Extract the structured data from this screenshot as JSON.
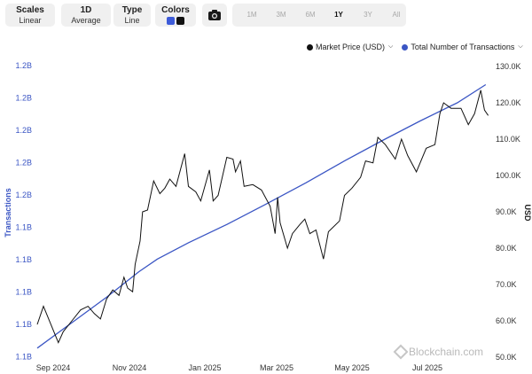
{
  "toolbar": {
    "scales": {
      "label": "Scales",
      "value": "Linear"
    },
    "interval": {
      "label": "1D",
      "value": "Average"
    },
    "type": {
      "label": "Type",
      "value": "Line"
    },
    "colors": {
      "label": "Colors",
      "swatch1": "#3d5bd9",
      "swatch2": "#111111"
    },
    "camera_icon": "camera-icon",
    "ranges": [
      "1M",
      "3M",
      "6M",
      "1Y",
      "3Y",
      "All"
    ],
    "active_range": "1Y"
  },
  "legend": {
    "market_price": "Market Price (USD)",
    "transactions": "Total Number of Transactions",
    "market_color": "#111111",
    "transactions_color": "#3b56c4"
  },
  "watermark": "Blockchain.com",
  "chart_data": {
    "type": "line",
    "x_ticks": [
      "Sep 2024",
      "Nov 2024",
      "Jan 2025",
      "Mar 2025",
      "May 2025",
      "Jul 2025"
    ],
    "left_axis": {
      "title": "Transactions",
      "tick_labels": [
        "1.2B",
        "1.2B",
        "1.2B",
        "1.2B",
        "1.2B",
        "1.1B",
        "1.1B",
        "1.1B",
        "1.1B",
        "1.1B"
      ]
    },
    "right_axis": {
      "title": "USD",
      "tick_labels": [
        "130.0K",
        "120.0K",
        "110.0K",
        "100.0K",
        "90.0K",
        "80.0K",
        "70.0K",
        "60.0K",
        "50.0K"
      ],
      "ylim": [
        50000,
        130000
      ]
    },
    "series": [
      {
        "name": "Market Price (USD)",
        "axis": "right",
        "color": "#111111",
        "points": [
          [
            "2024-08-20",
            59000
          ],
          [
            "2024-08-25",
            64000
          ],
          [
            "2024-08-31",
            59000
          ],
          [
            "2024-09-06",
            54000
          ],
          [
            "2024-09-10",
            57000
          ],
          [
            "2024-09-17",
            60000
          ],
          [
            "2024-09-24",
            63000
          ],
          [
            "2024-09-30",
            64000
          ],
          [
            "2024-10-05",
            62000
          ],
          [
            "2024-10-10",
            60500
          ],
          [
            "2024-10-15",
            66000
          ],
          [
            "2024-10-20",
            68500
          ],
          [
            "2024-10-25",
            67000
          ],
          [
            "2024-10-29",
            72000
          ],
          [
            "2024-11-01",
            69000
          ],
          [
            "2024-11-05",
            68000
          ],
          [
            "2024-11-07",
            75500
          ],
          [
            "2024-11-11",
            82000
          ],
          [
            "2024-11-13",
            90000
          ],
          [
            "2024-11-17",
            90500
          ],
          [
            "2024-11-22",
            98500
          ],
          [
            "2024-11-27",
            95000
          ],
          [
            "2024-12-01",
            96500
          ],
          [
            "2024-12-05",
            99000
          ],
          [
            "2024-12-10",
            97000
          ],
          [
            "2024-12-17",
            106000
          ],
          [
            "2024-12-20",
            97000
          ],
          [
            "2024-12-26",
            95500
          ],
          [
            "2024-12-30",
            93000
          ],
          [
            "2025-01-06",
            101500
          ],
          [
            "2025-01-09",
            93000
          ],
          [
            "2025-01-13",
            94500
          ],
          [
            "2025-01-20",
            105000
          ],
          [
            "2025-01-25",
            104500
          ],
          [
            "2025-01-27",
            101000
          ],
          [
            "2025-01-31",
            104000
          ],
          [
            "2025-02-03",
            97000
          ],
          [
            "2025-02-10",
            97500
          ],
          [
            "2025-02-17",
            96000
          ],
          [
            "2025-02-24",
            91500
          ],
          [
            "2025-02-28",
            84000
          ],
          [
            "2025-03-02",
            94000
          ],
          [
            "2025-03-04",
            87000
          ],
          [
            "2025-03-10",
            80000
          ],
          [
            "2025-03-14",
            84000
          ],
          [
            "2025-03-20",
            86500
          ],
          [
            "2025-03-24",
            88000
          ],
          [
            "2025-03-28",
            84000
          ],
          [
            "2025-04-02",
            85000
          ],
          [
            "2025-04-08",
            77000
          ],
          [
            "2025-04-12",
            84500
          ],
          [
            "2025-04-21",
            87500
          ],
          [
            "2025-04-25",
            94500
          ],
          [
            "2025-05-01",
            96500
          ],
          [
            "2025-05-08",
            99500
          ],
          [
            "2025-05-12",
            104000
          ],
          [
            "2025-05-18",
            103500
          ],
          [
            "2025-05-22",
            110500
          ],
          [
            "2025-05-28",
            108500
          ],
          [
            "2025-06-05",
            104500
          ],
          [
            "2025-06-10",
            110000
          ],
          [
            "2025-06-15",
            105500
          ],
          [
            "2025-06-22",
            101000
          ],
          [
            "2025-06-30",
            107500
          ],
          [
            "2025-07-07",
            108500
          ],
          [
            "2025-07-11",
            117000
          ],
          [
            "2025-07-14",
            120000
          ],
          [
            "2025-07-20",
            118500
          ],
          [
            "2025-07-28",
            118500
          ],
          [
            "2025-08-03",
            114000
          ],
          [
            "2025-08-08",
            117000
          ],
          [
            "2025-08-13",
            123500
          ],
          [
            "2025-08-16",
            118000
          ],
          [
            "2025-08-19",
            116500
          ]
        ]
      },
      {
        "name": "Total Number of Transactions",
        "axis": "left",
        "color": "#3b56c4",
        "points": [
          [
            "2024-08-20",
            52500
          ],
          [
            "2024-09-15",
            59000
          ],
          [
            "2024-10-15",
            66500
          ],
          [
            "2024-11-10",
            73500
          ],
          [
            "2024-11-25",
            77000
          ],
          [
            "2024-12-20",
            81500
          ],
          [
            "2025-01-20",
            86500
          ],
          [
            "2025-02-20",
            92000
          ],
          [
            "2025-03-25",
            98000
          ],
          [
            "2025-04-25",
            104000
          ],
          [
            "2025-05-25",
            109500
          ],
          [
            "2025-06-25",
            115000
          ],
          [
            "2025-07-25",
            120000
          ],
          [
            "2025-08-17",
            125000
          ]
        ]
      }
    ]
  }
}
